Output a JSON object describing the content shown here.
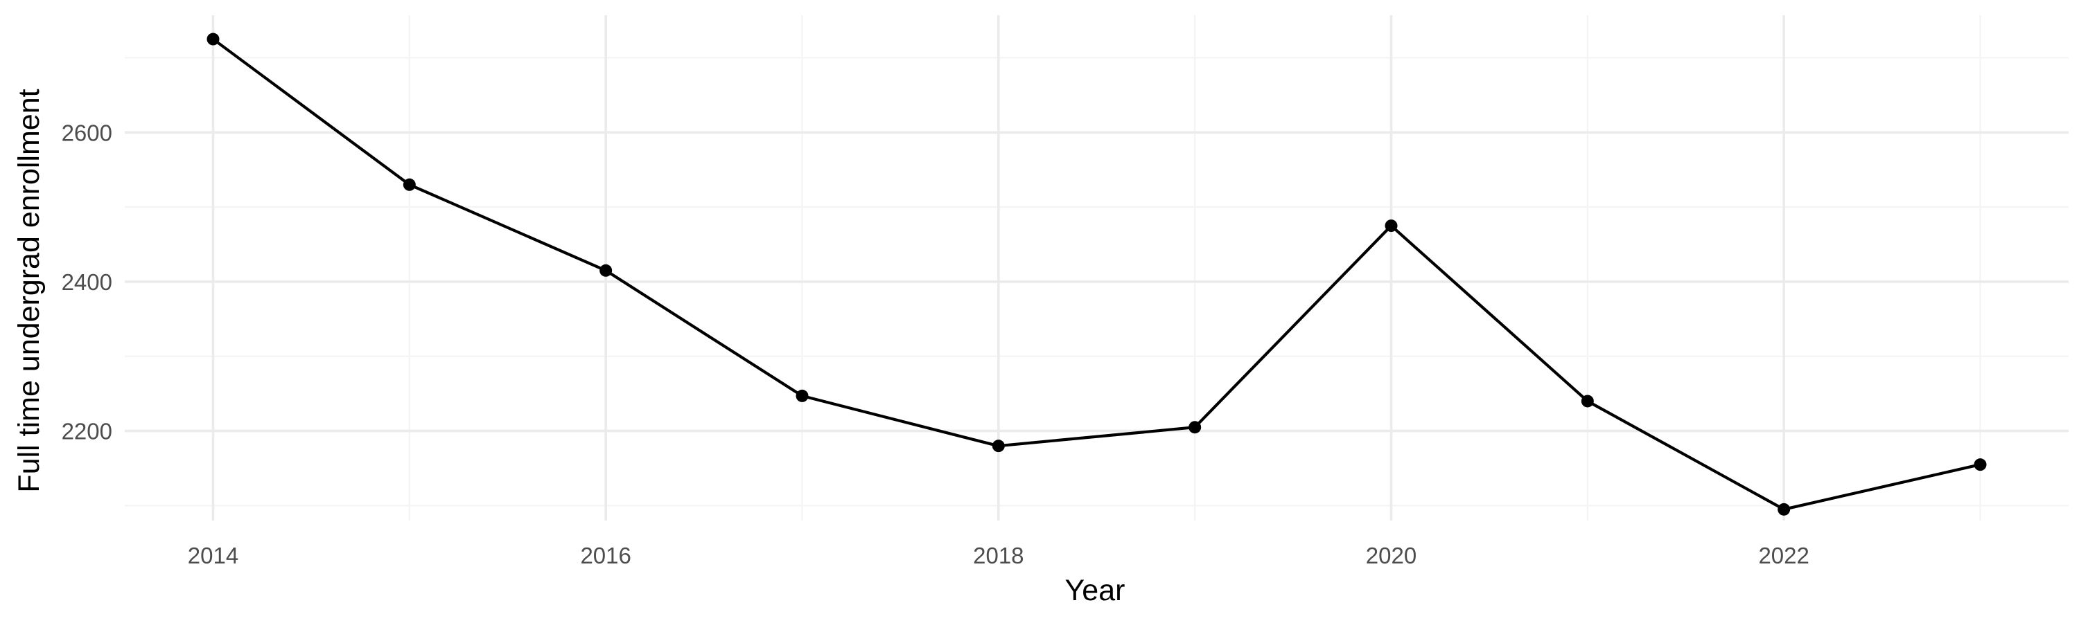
{
  "chart_data": {
    "type": "line",
    "xlabel": "Year",
    "ylabel": "Full time undergrad enrollment",
    "x": [
      2014,
      2015,
      2016,
      2017,
      2018,
      2019,
      2020,
      2021,
      2022,
      2023
    ],
    "series": [
      {
        "values": [
          2725,
          2530,
          2415,
          2247,
          2180,
          2205,
          2475,
          2240,
          2095,
          2155
        ]
      }
    ],
    "xlim": [
      2013.55,
      2023.45
    ],
    "ylim": [
      2080,
      2757
    ],
    "x_ticks": [
      2014,
      2016,
      2018,
      2020,
      2022
    ],
    "x_tick_labels": [
      "2014",
      "2016",
      "2018",
      "2020",
      "2022"
    ],
    "x_minor_ticks": [
      2015,
      2017,
      2019,
      2021,
      2023
    ],
    "y_ticks": [
      2200,
      2400,
      2600
    ],
    "y_tick_labels": [
      "2200",
      "2400",
      "2600"
    ],
    "y_minor_ticks": [
      2100,
      2300,
      2500,
      2700
    ],
    "grid": true,
    "legend": "none",
    "colors": {
      "line": "#000000",
      "grid": "#ebebeb",
      "tick_text": "#4d4d4d"
    }
  }
}
